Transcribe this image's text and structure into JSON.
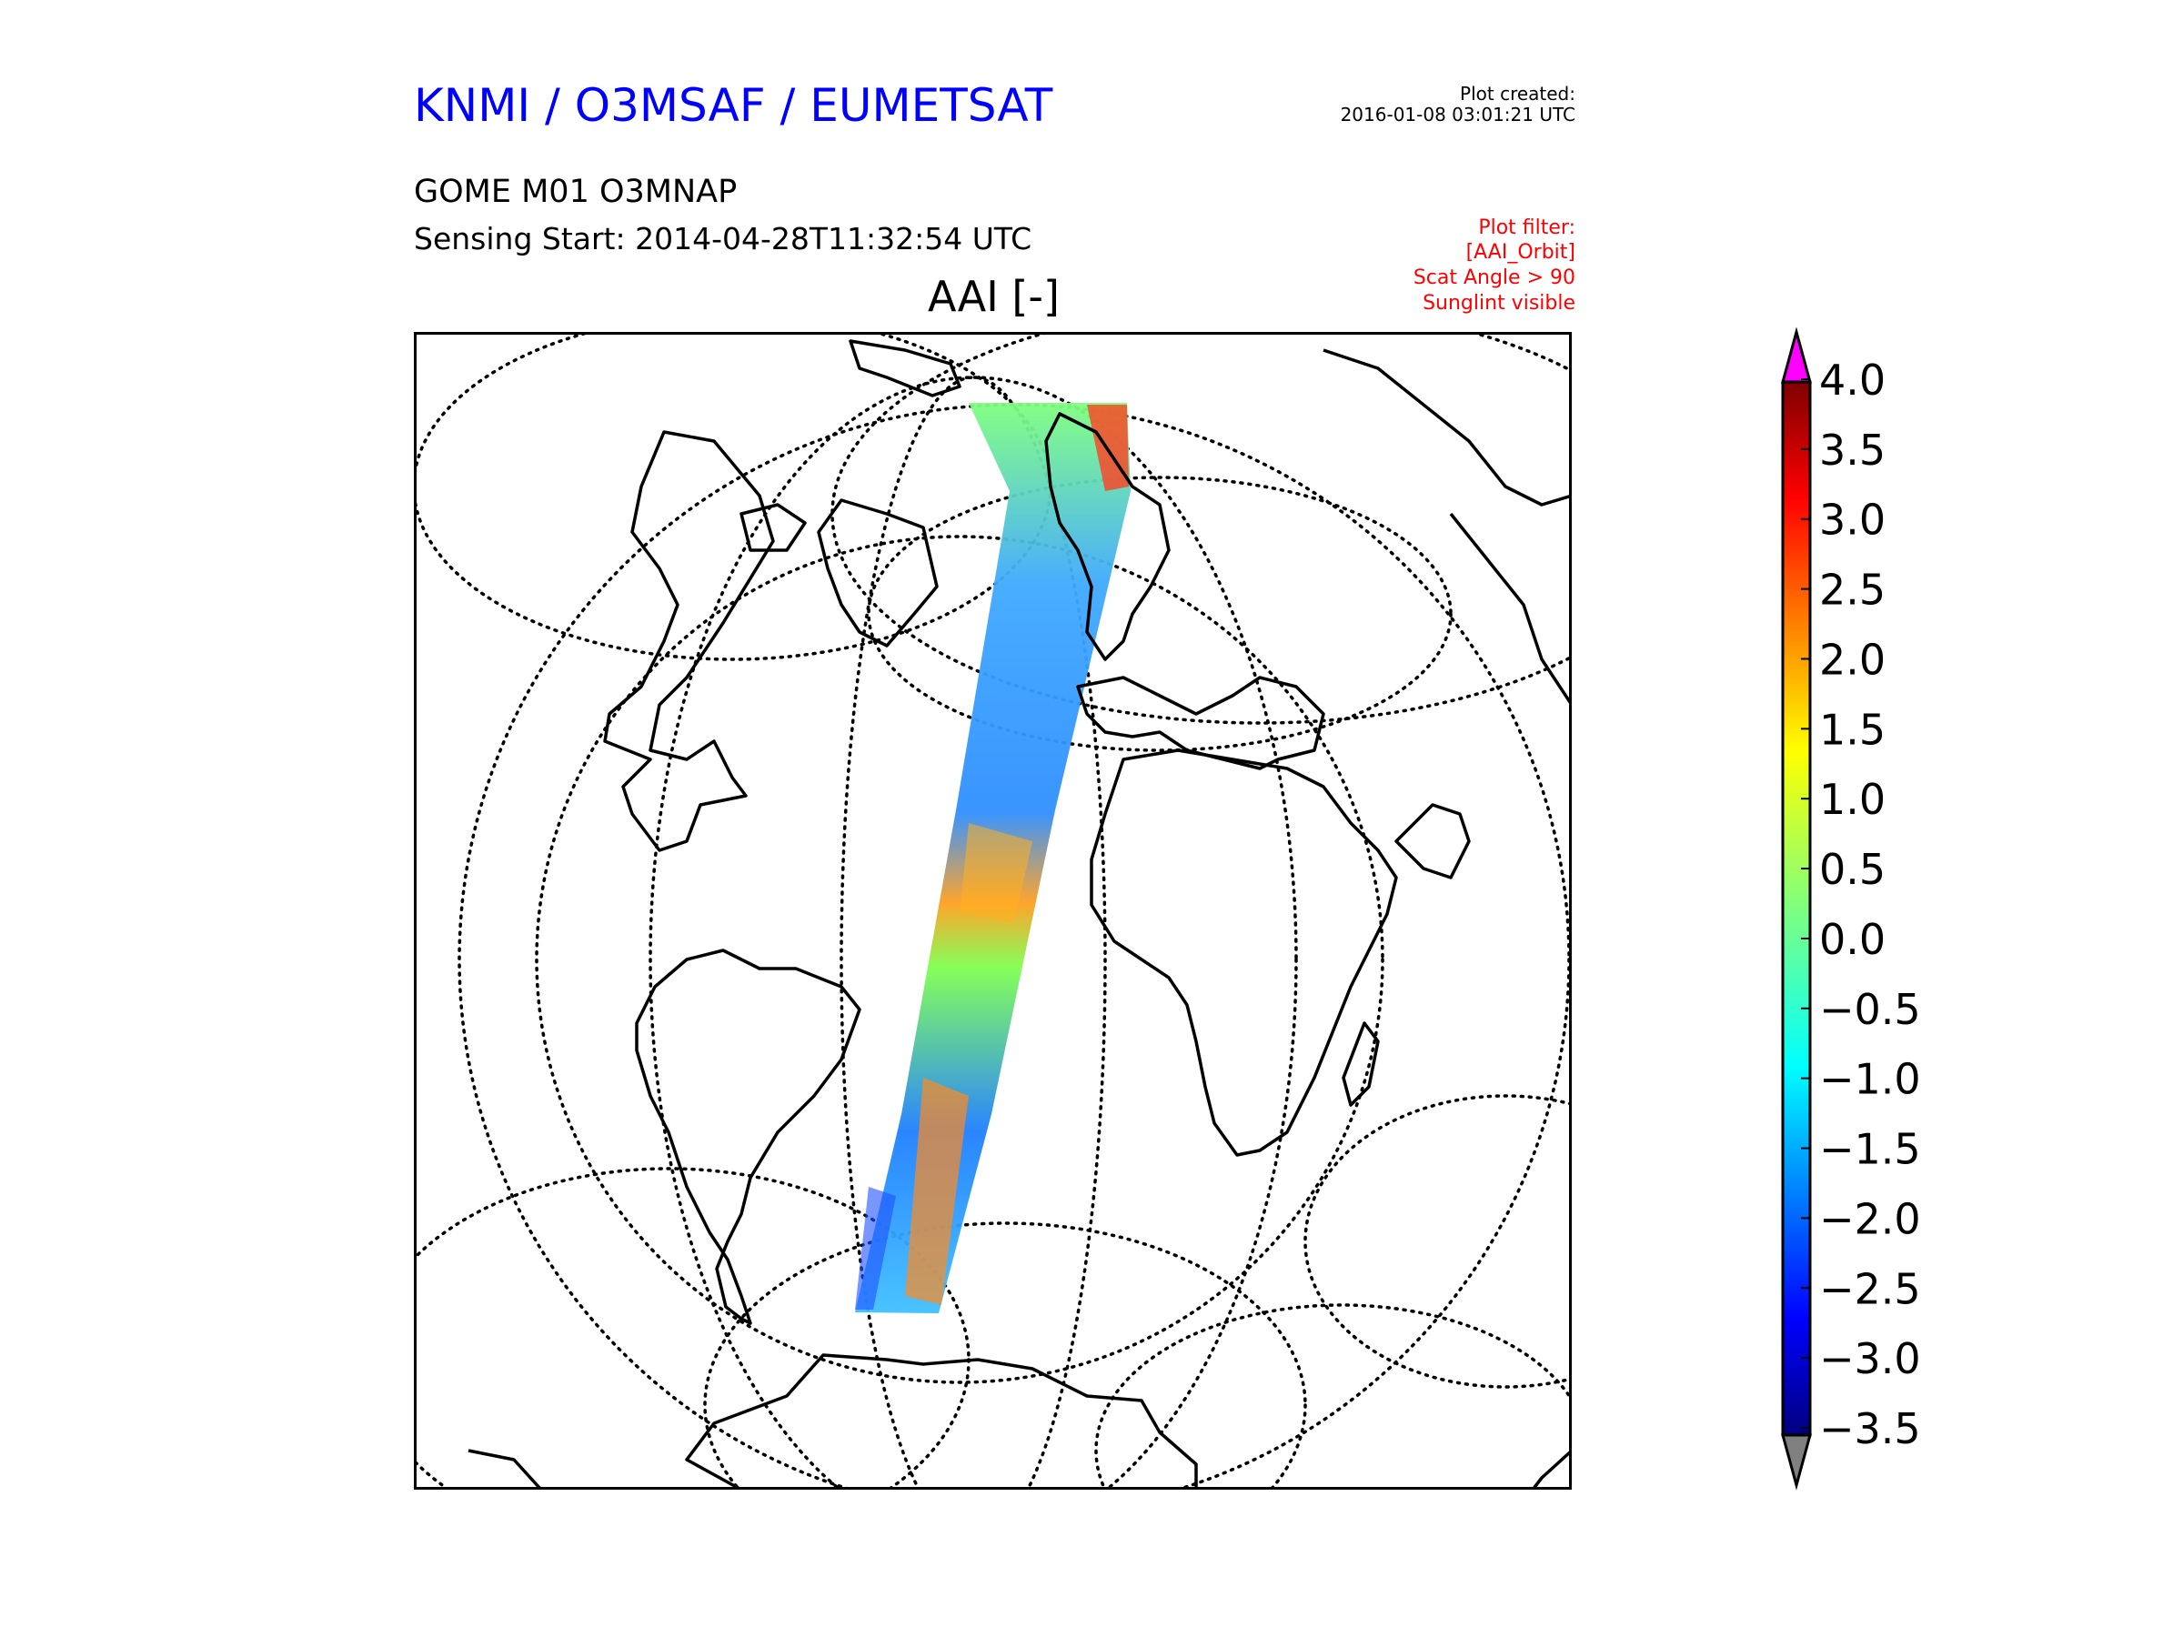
{
  "header": {
    "org_title": "KNMI / O3MSAF / EUMETSAT",
    "plot_created_label": "Plot created:",
    "plot_created_value": "2016-01-08 03:01:21 UTC",
    "product": "GOME M01 O3MNAP",
    "sensing_start": "Sensing Start: 2014-04-28T11:32:54 UTC"
  },
  "filter": {
    "label": "Plot filter:",
    "name": "[AAI_Orbit]",
    "scat_angle": "Scat Angle > 90",
    "sunglint": "Sunglint visible"
  },
  "map": {
    "title": "AAI [-]",
    "projection": "orthographic",
    "track": "Arctic – Scandinavia – Atlantic – Brazil – Patagonia",
    "dominant_values": "mostly -2.0 to 0.5; red patches up to 3.5 near Scandinavia and Patagonia"
  },
  "colorbar": {
    "ticks": [
      "4.0",
      "3.5",
      "3.0",
      "2.5",
      "2.0",
      "1.5",
      "1.0",
      "0.5",
      "0.0",
      "−0.5",
      "−1.0",
      "−1.5",
      "−2.0",
      "−2.5",
      "−3.0",
      "−3.5"
    ],
    "min": -3.5,
    "max": 4.0,
    "over_color": "#ff00ff",
    "under_color": "#808080",
    "colormap": "jet"
  }
}
